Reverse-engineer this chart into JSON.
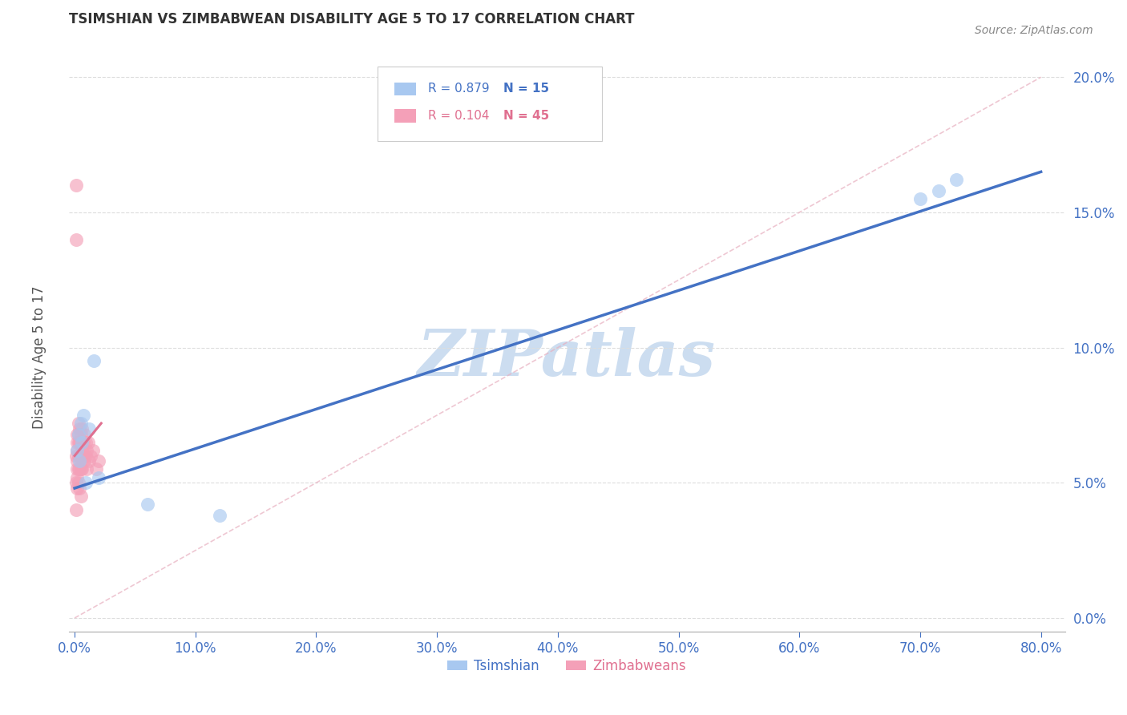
{
  "title": "TSIMSHIAN VS ZIMBABWEAN DISABILITY AGE 5 TO 17 CORRELATION CHART",
  "source": "Source: ZipAtlas.com",
  "ylabel": "Disability Age 5 to 17",
  "legend_label1": "Tsimshian",
  "legend_label2": "Zimbabweans",
  "R_tsimshian": 0.879,
  "N_tsimshian": 15,
  "R_zimbabwean": 0.104,
  "N_zimbabwean": 45,
  "xlim": [
    -0.005,
    0.82
  ],
  "ylim": [
    -0.005,
    0.215
  ],
  "xticks": [
    0.0,
    0.1,
    0.2,
    0.3,
    0.4,
    0.5,
    0.6,
    0.7,
    0.8
  ],
  "yticks": [
    0.0,
    0.05,
    0.1,
    0.15,
    0.2
  ],
  "color_tsimshian": "#a8c8f0",
  "color_zimbabwean": "#f4a0b8",
  "color_tsimshian_line": "#4472c4",
  "color_zimbabwean_line": "#e07090",
  "color_diagonal": "#e8b0c0",
  "tsimshian_x": [
    0.002,
    0.003,
    0.004,
    0.005,
    0.006,
    0.007,
    0.009,
    0.012,
    0.016,
    0.02,
    0.7,
    0.715,
    0.73
  ],
  "tsimshian_y": [
    0.062,
    0.068,
    0.058,
    0.072,
    0.065,
    0.075,
    0.05,
    0.07,
    0.095,
    0.052,
    0.155,
    0.158,
    0.162
  ],
  "tsimshian_x_low": [
    0.002,
    0.003,
    0.004,
    0.005,
    0.006,
    0.007,
    0.009,
    0.012,
    0.016,
    0.02,
    0.06,
    0.12,
    0.7,
    0.715,
    0.73
  ],
  "tsimshian_y_low": [
    0.062,
    0.068,
    0.058,
    0.072,
    0.065,
    0.075,
    0.05,
    0.07,
    0.095,
    0.052,
    0.042,
    0.038,
    0.155,
    0.158,
    0.162
  ],
  "zimbabwean_x": [
    0.001,
    0.001,
    0.001,
    0.001,
    0.001,
    0.002,
    0.002,
    0.002,
    0.002,
    0.002,
    0.002,
    0.002,
    0.003,
    0.003,
    0.003,
    0.003,
    0.003,
    0.003,
    0.004,
    0.004,
    0.004,
    0.004,
    0.004,
    0.005,
    0.005,
    0.005,
    0.005,
    0.005,
    0.006,
    0.006,
    0.006,
    0.007,
    0.007,
    0.008,
    0.008,
    0.009,
    0.009,
    0.01,
    0.01,
    0.011,
    0.012,
    0.013,
    0.015,
    0.018,
    0.02
  ],
  "zimbabwean_y": [
    0.16,
    0.14,
    0.06,
    0.05,
    0.04,
    0.068,
    0.065,
    0.062,
    0.058,
    0.055,
    0.052,
    0.048,
    0.072,
    0.068,
    0.065,
    0.06,
    0.055,
    0.05,
    0.07,
    0.065,
    0.06,
    0.055,
    0.048,
    0.068,
    0.065,
    0.06,
    0.055,
    0.045,
    0.07,
    0.062,
    0.055,
    0.065,
    0.06,
    0.068,
    0.058,
    0.065,
    0.06,
    0.062,
    0.055,
    0.065,
    0.058,
    0.06,
    0.062,
    0.055,
    0.058
  ],
  "tsim_line_x": [
    0.0,
    0.8
  ],
  "tsim_line_y": [
    0.048,
    0.165
  ],
  "zim_line_x": [
    0.0,
    0.035
  ],
  "zim_line_y": [
    0.06,
    0.072
  ],
  "diag_line_x": [
    0.0,
    0.8
  ],
  "diag_line_y": [
    0.0,
    0.2
  ],
  "watermark": "ZIPatlas",
  "watermark_color": "#ccddf0",
  "bg_color": "#ffffff",
  "grid_color": "#dddddd",
  "tick_color": "#4472c4",
  "title_color": "#333333",
  "source_color": "#888888"
}
